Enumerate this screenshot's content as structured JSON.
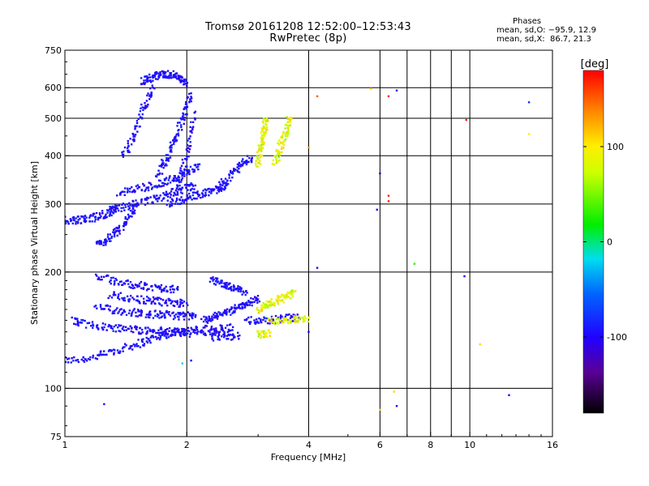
{
  "chart_data": {
    "type": "scatter",
    "title": "Tromsø 20161208 12:52:00–12:53:43",
    "subtitle": "RwPretec (8p)",
    "xlabel": "Frequency [MHz]",
    "ylabel": "Stationary phase Virtual Height [km]",
    "xscale": "log",
    "yscale": "log",
    "xlim": [
      1,
      16
    ],
    "ylim": [
      75,
      750
    ],
    "xticks": [
      1,
      2,
      4,
      6,
      8,
      10,
      16
    ],
    "xtick_labels": [
      "1",
      "2",
      "4",
      "6",
      "8",
      "10",
      "16"
    ],
    "x_gridlines": [
      2,
      4,
      6,
      7,
      8,
      9,
      10
    ],
    "yticks": [
      75,
      100,
      200,
      300,
      400,
      500,
      600,
      750
    ],
    "ytick_labels": [
      "75",
      "100",
      "200",
      "300",
      "400",
      "500",
      "600",
      "750"
    ],
    "grid": true,
    "colorbar": {
      "label": "[deg]",
      "range": [
        -180,
        180
      ],
      "ticks": [
        100,
        0,
        -100
      ],
      "tick_labels": [
        "100",
        "0",
        "-100"
      ]
    },
    "phases": {
      "title": "Phases",
      "o_line": "mean, sd,O: −95.9, 12.9",
      "x_line": "mean, sd,X:  86.7, 21.3"
    },
    "series": [
      {
        "color_phase": -95.9,
        "traces": [
          {
            "x": [
              1.0,
              1.1,
              1.2,
              1.3,
              1.4,
              1.5,
              1.6,
              1.7,
              1.8,
              1.9,
              2.0,
              2.2,
              2.4,
              2.6
            ],
            "y": [
              118,
              119,
              121,
              124,
              127,
              130,
              133,
              136,
              138,
              140,
              141,
              142,
              143,
              144
            ]
          },
          {
            "x": [
              1.05,
              1.1,
              1.2,
              1.3,
              1.4,
              1.5,
              1.6,
              1.7,
              1.8,
              1.9,
              2.0,
              2.2,
              2.4,
              2.6
            ],
            "y": [
              150,
              147,
              145,
              144,
              143,
              142,
              141,
              141,
              140,
              140,
              139,
              139,
              139,
              138
            ]
          },
          {
            "x": [
              1.2,
              1.3,
              1.4,
              1.5,
              1.6,
              1.7,
              1.8,
              1.9,
              2.0,
              2.1
            ],
            "y": [
              162,
              160,
              158,
              157,
              156,
              155,
              155,
              154,
              154,
              153
            ]
          },
          {
            "x": [
              1.3,
              1.4,
              1.5,
              1.6,
              1.7,
              1.8,
              1.9,
              2.0
            ],
            "y": [
              175,
              172,
              170,
              169,
              168,
              167,
              166,
              166
            ]
          },
          {
            "x": [
              1.2,
              1.3,
              1.4,
              1.5,
              1.6,
              1.7,
              1.8,
              1.9
            ],
            "y": [
              195,
              190,
              187,
              185,
              183,
              182,
              181,
              180
            ]
          },
          {
            "x": [
              1.0,
              1.05,
              1.1,
              1.15,
              1.2,
              1.25,
              1.3,
              1.35
            ],
            "y": [
              272,
              272,
              273,
              275,
              278,
              282,
              286,
              292
            ]
          },
          {
            "x": [
              1.2,
              1.25,
              1.3,
              1.35,
              1.4,
              1.45,
              1.5
            ],
            "y": [
              235,
              240,
              247,
              255,
              265,
              280,
              300
            ]
          },
          {
            "x": [
              1.3,
              1.4,
              1.5,
              1.6,
              1.7,
              1.8,
              1.9,
              2.0,
              2.1
            ],
            "y": [
              290,
              295,
              300,
              305,
              310,
              318,
              325,
              330,
              335
            ]
          },
          {
            "x": [
              1.35,
              1.45,
              1.55,
              1.65,
              1.75,
              1.85,
              1.95,
              2.05,
              2.15
            ],
            "y": [
              320,
              325,
              330,
              335,
              340,
              348,
              355,
              365,
              380
            ]
          },
          {
            "x": [
              1.4,
              1.45,
              1.5,
              1.55,
              1.6,
              1.65
            ],
            "y": [
              400,
              430,
              470,
              520,
              560,
              600
            ]
          },
          {
            "x": [
              1.55,
              1.6,
              1.65,
              1.7,
              1.75,
              1.8,
              1.85,
              1.9,
              1.95,
              2.0
            ],
            "y": [
              620,
              630,
              640,
              645,
              648,
              650,
              648,
              640,
              630,
              615
            ]
          },
          {
            "x": [
              1.7,
              1.75,
              1.8,
              1.85,
              1.9,
              1.95,
              2.0,
              2.05
            ],
            "y": [
              360,
              380,
              400,
              430,
              460,
              500,
              540,
              580
            ]
          },
          {
            "x": [
              1.9,
              1.95,
              2.0,
              2.05,
              2.1
            ],
            "y": [
              330,
              360,
              400,
              450,
              520
            ]
          },
          {
            "x": [
              1.8,
              1.9,
              2.0,
              2.1,
              2.2,
              2.3,
              2.4,
              2.5
            ],
            "y": [
              300,
              305,
              310,
              315,
              320,
              325,
              330,
              335
            ]
          },
          {
            "x": [
              2.4,
              2.5,
              2.6,
              2.7,
              2.8,
              2.9
            ],
            "y": [
              330,
              345,
              360,
              375,
              385,
              395
            ]
          },
          {
            "x": [
              2.3,
              2.4,
              2.5,
              2.6,
              2.7,
              2.8
            ],
            "y": [
              190,
              188,
              185,
              183,
              180,
              178
            ]
          },
          {
            "x": [
              2.2,
              2.3,
              2.4,
              2.5,
              2.6,
              2.7,
              2.8,
              2.9,
              3.0
            ],
            "y": [
              150,
              152,
              155,
              157,
              160,
              162,
              165,
              168,
              170
            ]
          },
          {
            "x": [
              2.8,
              3.0,
              3.2,
              3.4,
              3.6,
              3.8
            ],
            "y": [
              150,
              149,
              150,
              151,
              152,
              152
            ]
          },
          {
            "x": [
              2.3,
              2.5,
              2.7
            ],
            "y": [
              135,
              136,
              137
            ]
          }
        ]
      },
      {
        "color_phase": 86.7,
        "traces": [
          {
            "x": [
              3.0,
              3.02,
              3.05,
              3.08,
              3.1,
              3.12,
              3.15
            ],
            "y": [
              380,
              400,
              420,
              440,
              460,
              480,
              500
            ]
          },
          {
            "x": [
              3.3,
              3.35,
              3.4,
              3.45,
              3.5,
              3.55,
              3.6
            ],
            "y": [
              380,
              400,
              420,
              440,
              460,
              480,
              500
            ]
          },
          {
            "x": [
              3.0,
              3.1,
              3.2,
              3.3,
              3.4,
              3.5,
              3.6,
              3.7
            ],
            "y": [
              160,
              162,
              165,
              168,
              170,
              172,
              175,
              178
            ]
          },
          {
            "x": [
              3.2,
              3.4,
              3.6,
              3.8,
              4.0
            ],
            "y": [
              150,
              150,
              151,
              151,
              152
            ]
          },
          {
            "x": [
              3.0,
              3.1,
              3.2
            ],
            "y": [
              138,
              138,
              139
            ]
          }
        ]
      }
    ],
    "scattered_points": [
      {
        "x": 1.25,
        "y": 91,
        "phase": -100
      },
      {
        "x": 1.95,
        "y": 116,
        "phase": -20
      },
      {
        "x": 2.05,
        "y": 118,
        "phase": -100
      },
      {
        "x": 4.2,
        "y": 205,
        "phase": -100
      },
      {
        "x": 4.2,
        "y": 570,
        "phase": 150
      },
      {
        "x": 5.7,
        "y": 596,
        "phase": 110
      },
      {
        "x": 5.9,
        "y": 290,
        "phase": -100
      },
      {
        "x": 6.0,
        "y": 360,
        "phase": -100
      },
      {
        "x": 6.3,
        "y": 305,
        "phase": 170
      },
      {
        "x": 6.3,
        "y": 315,
        "phase": 170
      },
      {
        "x": 6.3,
        "y": 570,
        "phase": 170
      },
      {
        "x": 6.6,
        "y": 590,
        "phase": -100
      },
      {
        "x": 6.6,
        "y": 90,
        "phase": -100
      },
      {
        "x": 6.0,
        "y": 88,
        "phase": 110
      },
      {
        "x": 6.5,
        "y": 98,
        "phase": 110
      },
      {
        "x": 7.3,
        "y": 210,
        "phase": 30
      },
      {
        "x": 9.7,
        "y": 195,
        "phase": -100
      },
      {
        "x": 9.8,
        "y": 495,
        "phase": 170
      },
      {
        "x": 10.6,
        "y": 130,
        "phase": 110
      },
      {
        "x": 12.5,
        "y": 96,
        "phase": -100
      },
      {
        "x": 14.0,
        "y": 550,
        "phase": -80
      },
      {
        "x": 14.0,
        "y": 455,
        "phase": 100
      },
      {
        "x": 4.0,
        "y": 140,
        "phase": -100
      },
      {
        "x": 4.0,
        "y": 420,
        "phase": 130
      }
    ]
  }
}
